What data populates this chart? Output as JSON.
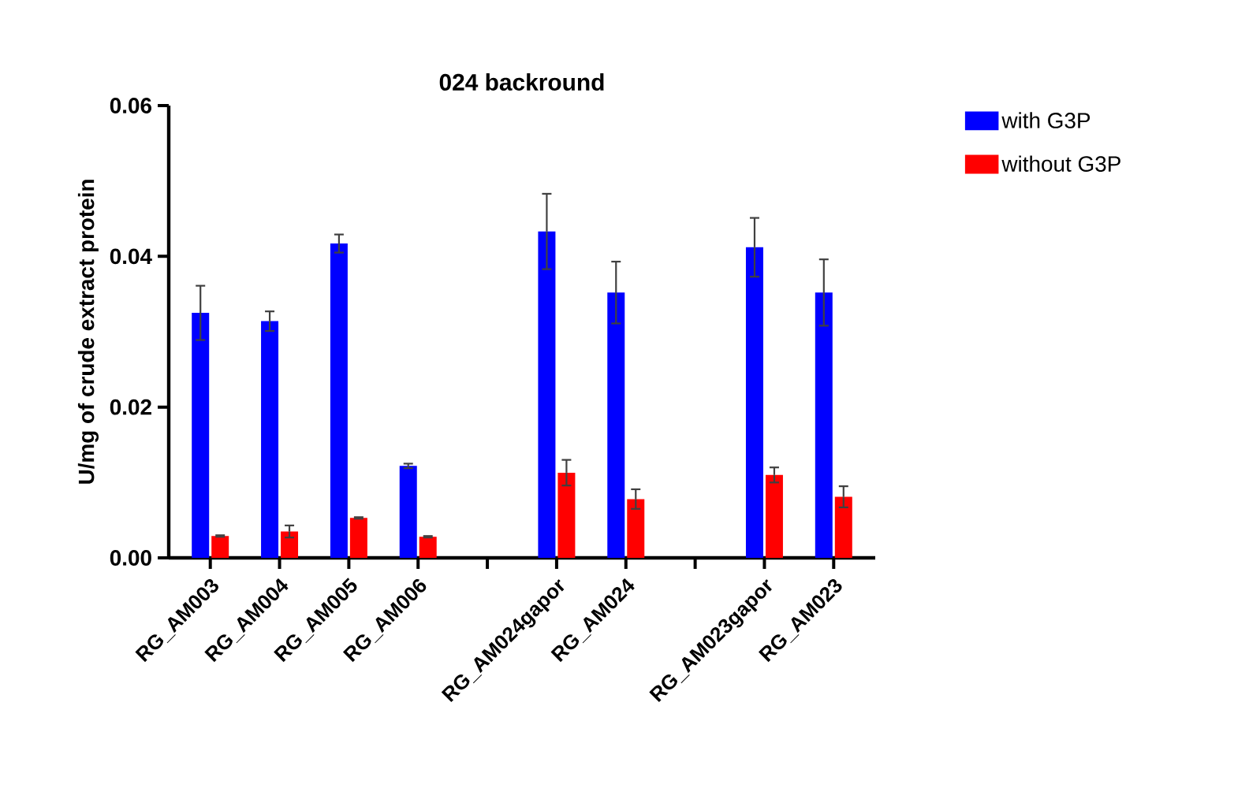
{
  "chart_data": {
    "type": "bar",
    "title": "024 backround",
    "ylabel": "U/mg of crude extract protein",
    "categories": [
      "RG_AM003",
      "RG_AM004",
      "RG_AM005",
      "RG_AM006",
      null,
      "RG_AM024gapor",
      "RG_AM024",
      null,
      "RG_AM023gapor",
      "RG_AM023"
    ],
    "series": [
      {
        "name": "with G3P",
        "color": "#0000ff",
        "values": [
          0.0325,
          0.0314,
          0.0417,
          0.0122,
          null,
          0.0433,
          0.0352,
          null,
          0.0412,
          0.0352
        ],
        "errors": [
          0.0036,
          0.0013,
          0.0012,
          0.0003,
          null,
          0.005,
          0.0041,
          null,
          0.0039,
          0.0044
        ]
      },
      {
        "name": "without G3P",
        "color": "#ff0000",
        "values": [
          0.0029,
          0.0035,
          0.0053,
          0.0028,
          null,
          0.0113,
          0.0078,
          null,
          0.011,
          0.0081
        ],
        "errors": [
          0.0001,
          0.0008,
          0.0001,
          0.0001,
          null,
          0.0017,
          0.0013,
          null,
          0.001,
          0.0014
        ]
      }
    ],
    "ylim": [
      0,
      0.06
    ],
    "yticks": [
      {
        "value": 0,
        "label": "0.00"
      },
      {
        "value": 0.02,
        "label": "0.02"
      },
      {
        "value": 0.04,
        "label": "0.04"
      },
      {
        "value": 0.06,
        "label": "0.06"
      }
    ],
    "legend": "top right",
    "grid": false
  }
}
